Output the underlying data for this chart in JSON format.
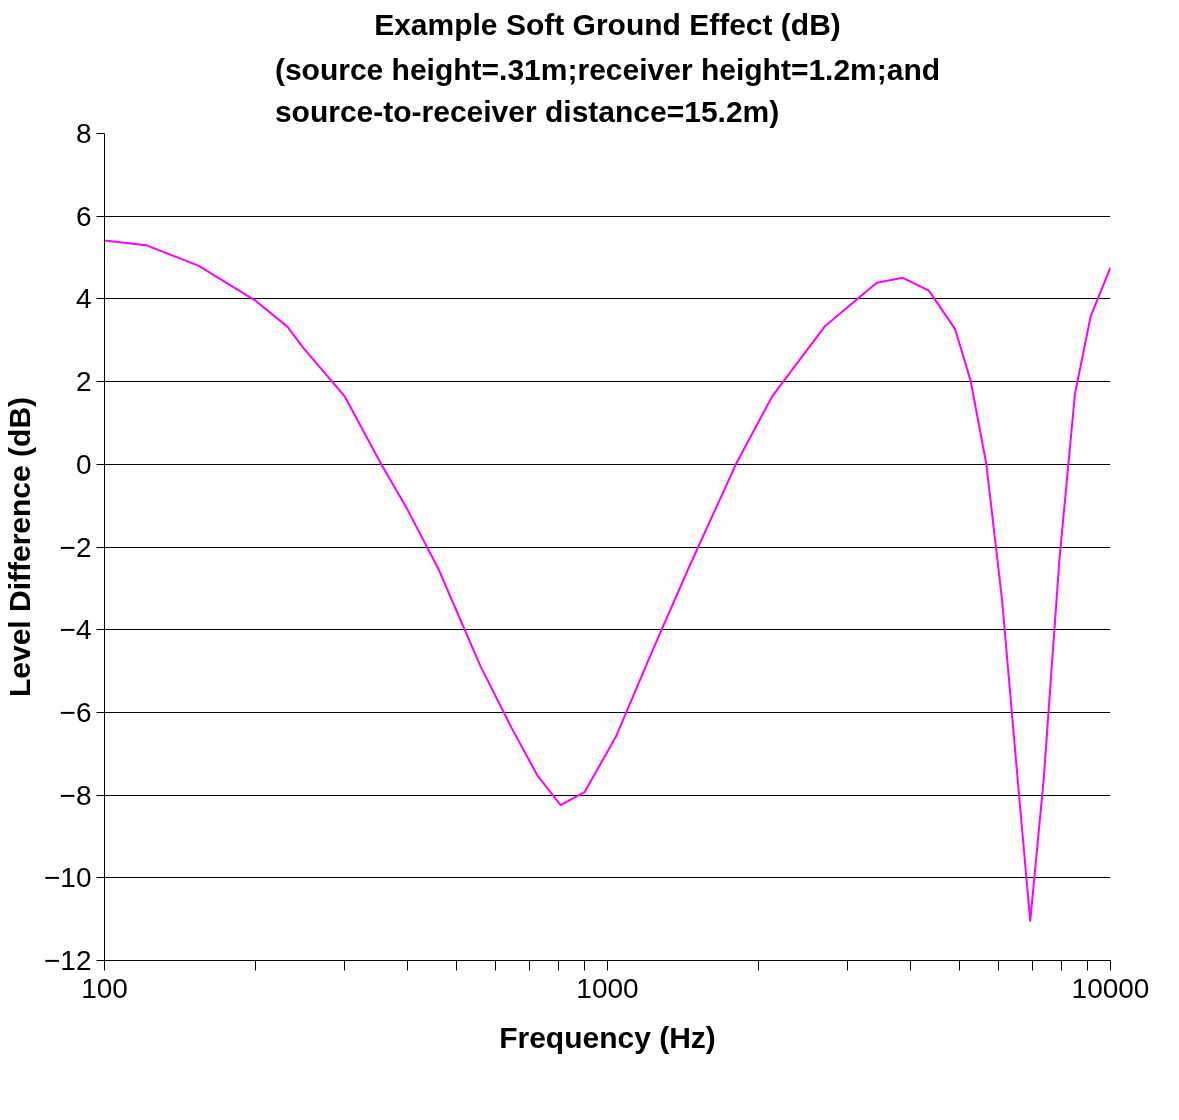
{
  "chart_data": {
    "type": "line",
    "title": "Example Soft Ground Effect (dB)",
    "subtitle": "(source height=.31m;receiver height=1.2m;and source-to-receiver distance=15.2m)",
    "xlabel": "Frequency (Hz)",
    "ylabel": "Level Difference (dB)",
    "log": "x",
    "grid": "y",
    "line_style": "solid",
    "x": [
      100,
      121,
      154,
      200,
      231,
      248,
      300,
      355,
      400,
      462,
      559,
      645,
      726,
      807,
      900,
      1039,
      1228,
      1452,
      1800,
      2127,
      2702,
      3430,
      3866,
      4355,
      4909,
      5272,
      5665,
      6086,
      6538,
      6925,
      7366,
      7912,
      8500,
      9132,
      10000
    ],
    "series": [
      {
        "color": "#ff00ff",
        "values": [
          5.41,
          5.3,
          4.8,
          3.95,
          3.33,
          2.83,
          1.65,
          0,
          -1.09,
          -2.55,
          -4.88,
          -6.38,
          -7.53,
          -8.24,
          -7.93,
          -6.59,
          -4.51,
          -2.49,
          0,
          1.65,
          3.33,
          4.39,
          4.51,
          4.2,
          3.27,
          2.02,
          0,
          -3.27,
          -7.62,
          -11.04,
          -7.62,
          -2.33,
          1.71,
          3.58,
          4.76
        ]
      }
    ],
    "xlim": [
      100,
      10000
    ],
    "ylim": [
      -12,
      8
    ],
    "xticks": [
      {
        "value": 100,
        "label": "100"
      },
      {
        "value": 200,
        "label": null
      },
      {
        "value": 300,
        "label": null
      },
      {
        "value": 400,
        "label": null
      },
      {
        "value": 500,
        "label": null
      },
      {
        "value": 600,
        "label": null
      },
      {
        "value": 700,
        "label": null
      },
      {
        "value": 800,
        "label": null
      },
      {
        "value": 900,
        "label": null
      },
      {
        "value": 1000,
        "label": "1000"
      },
      {
        "value": 2000,
        "label": null
      },
      {
        "value": 3000,
        "label": null
      },
      {
        "value": 4000,
        "label": null
      },
      {
        "value": 5000,
        "label": null
      },
      {
        "value": 6000,
        "label": null
      },
      {
        "value": 7000,
        "label": null
      },
      {
        "value": 8000,
        "label": null
      },
      {
        "value": 9000,
        "label": null
      },
      {
        "value": 10000,
        "label": "10000"
      }
    ],
    "yticks": [
      -12,
      -10,
      -8,
      -6,
      -4,
      -2,
      0,
      2,
      4,
      6,
      8
    ]
  }
}
